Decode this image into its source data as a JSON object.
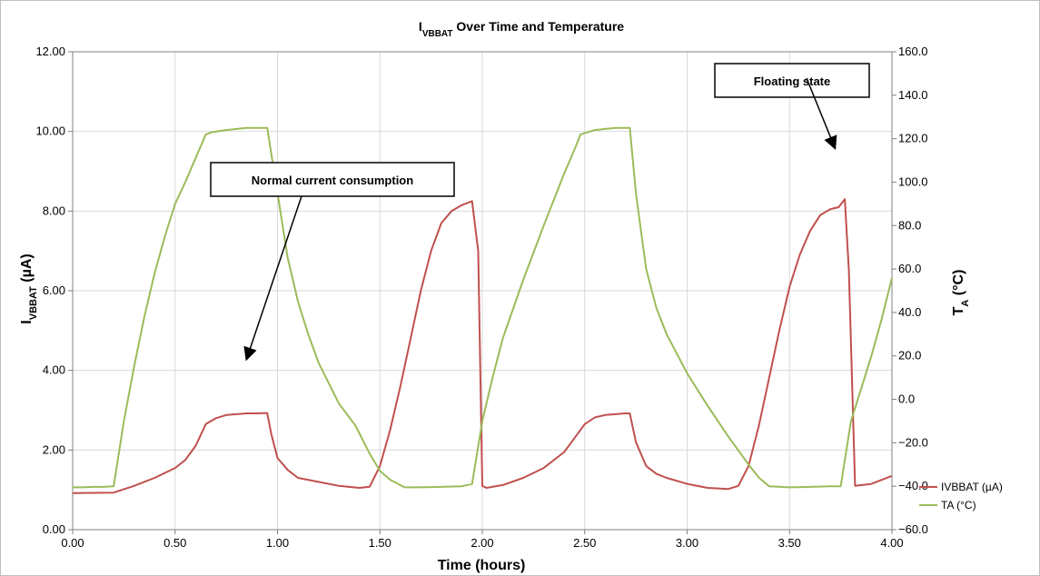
{
  "chart_data": {
    "type": "line",
    "title": "I",
    "title_subscript": "VBBAT",
    "title_rest": " Over Time and Temperature",
    "xlabel": "Time (hours)",
    "ylabel_main": "I",
    "ylabel_sub": "VBBAT",
    "ylabel_rest": " (µA)",
    "y2label_main": "T",
    "y2label_sub": "A",
    "y2label_rest": " (°C)",
    "xlim": [
      0,
      4
    ],
    "ylim": [
      0,
      12
    ],
    "y2lim": [
      -60,
      160
    ],
    "x_ticks": [
      "0.00",
      "0.50",
      "1.00",
      "1.50",
      "2.00",
      "2.50",
      "3.00",
      "3.50",
      "4.00"
    ],
    "y_ticks": [
      "0.00",
      "2.00",
      "4.00",
      "6.00",
      "8.00",
      "10.00",
      "12.00"
    ],
    "y2_ticks": [
      "-60.0",
      "-40.0",
      "-20.0",
      "0.0",
      "20.0",
      "40.0",
      "60.0",
      "80.0",
      "100.0",
      "120.0",
      "140.0",
      "160.0"
    ],
    "grid": "vertical and horizontal",
    "legend_position": "right",
    "series": [
      {
        "name": "IVBBAT (µA)",
        "axis": "left",
        "color": "#c0504d",
        "x": [
          0,
          0.2,
          0.3,
          0.4,
          0.5,
          0.55,
          0.6,
          0.65,
          0.7,
          0.75,
          0.8,
          0.85,
          0.9,
          0.95,
          0.97,
          1.0,
          1.05,
          1.1,
          1.2,
          1.3,
          1.4,
          1.45,
          1.5,
          1.55,
          1.6,
          1.65,
          1.7,
          1.75,
          1.8,
          1.85,
          1.9,
          1.95,
          1.98,
          2.0,
          2.02,
          2.1,
          2.2,
          2.3,
          2.4,
          2.45,
          2.5,
          2.55,
          2.6,
          2.65,
          2.7,
          2.72,
          2.75,
          2.8,
          2.85,
          2.9,
          3.0,
          3.1,
          3.2,
          3.25,
          3.3,
          3.35,
          3.4,
          3.45,
          3.5,
          3.55,
          3.6,
          3.65,
          3.7,
          3.74,
          3.77,
          3.79,
          3.82,
          3.9,
          4.0
        ],
        "values": [
          0.92,
          0.93,
          1.1,
          1.3,
          1.55,
          1.75,
          2.1,
          2.65,
          2.8,
          2.88,
          2.9,
          2.92,
          2.92,
          2.93,
          2.4,
          1.8,
          1.5,
          1.3,
          1.2,
          1.1,
          1.05,
          1.08,
          1.6,
          2.5,
          3.6,
          4.8,
          6.0,
          7.0,
          7.7,
          8.0,
          8.15,
          8.25,
          7.0,
          1.1,
          1.05,
          1.12,
          1.3,
          1.55,
          1.95,
          2.3,
          2.65,
          2.82,
          2.88,
          2.9,
          2.92,
          2.92,
          2.2,
          1.6,
          1.4,
          1.3,
          1.15,
          1.05,
          1.02,
          1.1,
          1.6,
          2.6,
          3.8,
          5.0,
          6.1,
          6.9,
          7.5,
          7.9,
          8.05,
          8.1,
          8.3,
          6.5,
          1.1,
          1.15,
          1.35
        ]
      },
      {
        "name": "TA (°C)",
        "axis": "right",
        "color": "#9bbb59",
        "x": [
          0,
          0.05,
          0.1,
          0.15,
          0.2,
          0.25,
          0.3,
          0.35,
          0.4,
          0.45,
          0.5,
          0.55,
          0.6,
          0.65,
          0.68,
          0.75,
          0.85,
          0.92,
          0.95,
          1.0,
          1.05,
          1.1,
          1.15,
          1.2,
          1.3,
          1.38,
          1.45,
          1.5,
          1.55,
          1.62,
          1.7,
          1.8,
          1.9,
          1.95,
          2.0,
          2.05,
          2.1,
          2.2,
          2.3,
          2.4,
          2.45,
          2.48,
          2.55,
          2.65,
          2.72,
          2.75,
          2.8,
          2.85,
          2.9,
          3.0,
          3.1,
          3.2,
          3.3,
          3.35,
          3.4,
          3.5,
          3.6,
          3.7,
          3.75,
          3.8,
          3.85,
          3.9,
          3.95,
          4.0
        ],
        "values": [
          -40.5,
          -40.5,
          -40.3,
          -40.3,
          -40,
          -10,
          15,
          38,
          58,
          75,
          90,
          100,
          111,
          122,
          123,
          124,
          125,
          125,
          125,
          95,
          65,
          45,
          30,
          17,
          -2,
          -12,
          -25,
          -33,
          -37,
          -40.5,
          -40.5,
          -40.3,
          -40,
          -39,
          -10,
          10,
          28,
          55,
          80,
          104,
          115,
          122,
          124,
          125,
          125,
          95,
          60,
          42,
          30,
          12,
          -3,
          -17,
          -30,
          -36,
          -40,
          -40.5,
          -40.3,
          -40,
          -40,
          -10,
          5,
          20,
          37,
          56
        ]
      }
    ],
    "annotations": [
      {
        "text": "Normal current consumption",
        "arrow_to_x": 0.85,
        "arrow_to_y": 4.3
      },
      {
        "text": "Floating state",
        "arrow_to_x": 3.72,
        "arrow_to_y": 9.6
      }
    ]
  }
}
